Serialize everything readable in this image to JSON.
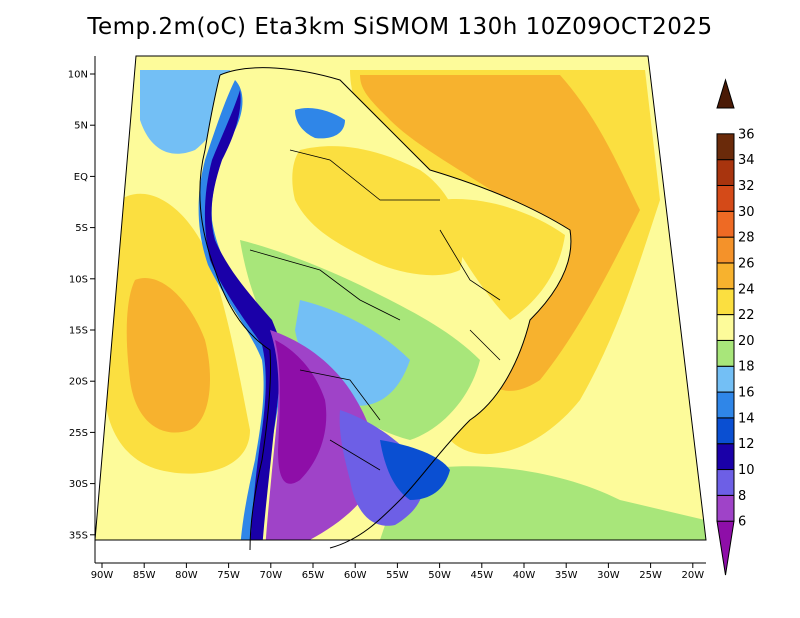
{
  "title": "Temp.2m(oC) Eta3km SiSMOM 130h 10Z09OCT2025",
  "lat_labels": [
    "10N",
    "5N",
    "EQ",
    "5S",
    "10S",
    "15S",
    "20S",
    "25S",
    "30S",
    "35S"
  ],
  "lon_labels": [
    "90W",
    "85W",
    "80W",
    "75W",
    "70W",
    "65W",
    "60W",
    "55W",
    "50W",
    "45W",
    "40W",
    "35W",
    "30W",
    "25W",
    "20W"
  ],
  "colorbar": {
    "labels": [
      "6",
      "8",
      "10",
      "12",
      "14",
      "16",
      "18",
      "20",
      "22",
      "24",
      "26",
      "28",
      "30",
      "32",
      "34",
      "36"
    ],
    "colors": [
      "#8e0ea8",
      "#9f43c8",
      "#6d5fe6",
      "#1a00a8",
      "#0a4fd2",
      "#2f86e8",
      "#73bff5",
      "#a8e67a",
      "#fdfb9a",
      "#fbdf40",
      "#f7b22e",
      "#f4922a",
      "#ee6a24",
      "#d44a18",
      "#a8340e",
      "#6a2a0a",
      "#4a1a06"
    ]
  },
  "colors": {
    "ocean_far": "#fdfb9a",
    "ocean_warm": "#fbdf40",
    "ocean_hot": "#f7b22e",
    "land_base": "#fdfb9a",
    "land_warm": "#fbdf40",
    "highland_cool": "#a8e67a",
    "andes": "#2f86e8",
    "cold": "#1a00a8",
    "very_cold": "#8e0ea8"
  }
}
